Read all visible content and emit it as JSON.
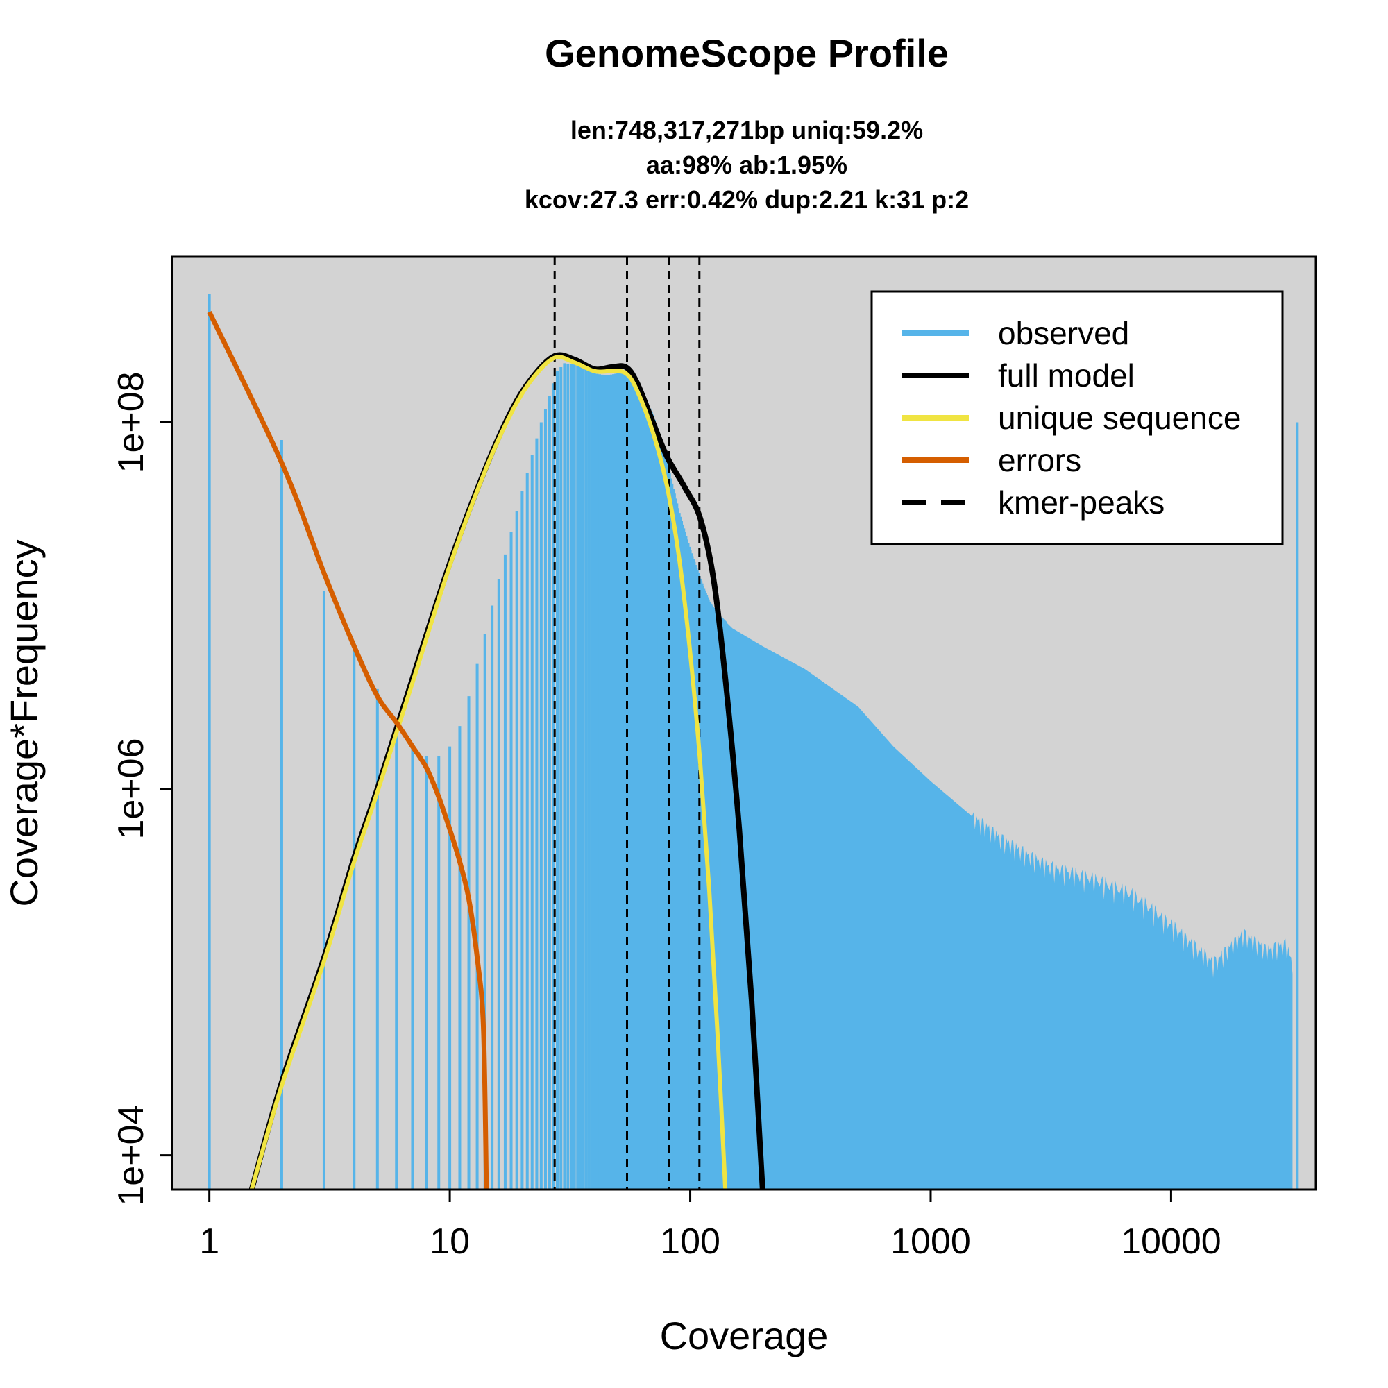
{
  "chart_data": {
    "type": "line",
    "title": "GenomeScope Profile",
    "subtitle_lines": [
      "len:748,317,271bp uniq:59.2%",
      "aa:98% ab:1.95%",
      "kcov:27.3 err:0.42%  dup:2.21  k:31 p:2"
    ],
    "xlabel": "Coverage",
    "ylabel": "Coverage*Frequency",
    "x_scale": "log",
    "y_scale": "log",
    "xlim": [
      0.7,
      40000
    ],
    "ylim": [
      6500,
      800000000
    ],
    "x_ticks": [
      {
        "value": 1,
        "label": "1"
      },
      {
        "value": 10,
        "label": "10"
      },
      {
        "value": 100,
        "label": "100"
      },
      {
        "value": 1000,
        "label": "1000"
      },
      {
        "value": 10000,
        "label": "10000"
      }
    ],
    "y_ticks": [
      {
        "value": 10000,
        "label": "1e+04"
      },
      {
        "value": 1000000,
        "label": "1e+06"
      },
      {
        "value": 100000000,
        "label": "1e+08"
      }
    ],
    "legend_position": "top-right",
    "colors": {
      "panel_background": "#d3d3d3",
      "observed": "#56b4e9",
      "full_model": "#000000",
      "unique_sequence": "#f0e442",
      "errors": "#d55e00",
      "kmer_peaks": "#000000"
    },
    "legend": [
      {
        "key": "observed",
        "label": "observed",
        "style": "solid"
      },
      {
        "key": "full_model",
        "label": "full model",
        "style": "solid"
      },
      {
        "key": "unique_sequence",
        "label": "unique sequence",
        "style": "solid"
      },
      {
        "key": "errors",
        "label": "errors",
        "style": "solid"
      },
      {
        "key": "kmer_peaks",
        "label": "kmer-peaks",
        "style": "dashed"
      }
    ],
    "kmer_peaks": [
      27.3,
      54.6,
      81.9,
      109.2
    ],
    "observed": {
      "description_points": [
        [
          1,
          500000000
        ],
        [
          2,
          80000000
        ],
        [
          3,
          12000000
        ],
        [
          4,
          6000000
        ],
        [
          5,
          3500000
        ],
        [
          6,
          2200000
        ],
        [
          7,
          1700000
        ],
        [
          8,
          1500000
        ],
        [
          9,
          1500000
        ],
        [
          10,
          1700000
        ],
        [
          11,
          2200000
        ],
        [
          12,
          3200000
        ],
        [
          13,
          4800000
        ],
        [
          14,
          7000000
        ],
        [
          15,
          10000000
        ],
        [
          17,
          19000000
        ],
        [
          20,
          42000000
        ],
        [
          24,
          100000000
        ],
        [
          28,
          190000000
        ],
        [
          30,
          210000000
        ],
        [
          35,
          205000000
        ],
        [
          40,
          185000000
        ],
        [
          45,
          180000000
        ],
        [
          50,
          185000000
        ],
        [
          55,
          185000000
        ],
        [
          60,
          165000000
        ],
        [
          70,
          110000000
        ],
        [
          80,
          60000000
        ],
        [
          90,
          32000000
        ],
        [
          100,
          20000000
        ],
        [
          110,
          14000000
        ],
        [
          120,
          10500000
        ],
        [
          130,
          9000000
        ],
        [
          150,
          7500000
        ],
        [
          200,
          6000000
        ],
        [
          300,
          4500000
        ],
        [
          500,
          2800000
        ],
        [
          700,
          1700000
        ],
        [
          1000,
          1100000
        ],
        [
          1500,
          700000
        ],
        [
          2000,
          520000
        ],
        [
          3000,
          380000
        ],
        [
          5000,
          310000
        ],
        [
          7000,
          260000
        ],
        [
          10000,
          180000
        ],
        [
          15000,
          110000
        ],
        [
          20000,
          160000
        ],
        [
          25000,
          130000
        ],
        [
          30000,
          140000
        ],
        [
          32000,
          110000
        ],
        [
          33500,
          100000000
        ]
      ]
    },
    "full_model": [
      [
        1.5,
        6500
      ],
      [
        2,
        25000
      ],
      [
        3,
        120000
      ],
      [
        4,
        420000
      ],
      [
        5,
        1000000
      ],
      [
        7,
        4000000
      ],
      [
        10,
        17000000
      ],
      [
        14,
        55000000
      ],
      [
        18,
        115000000
      ],
      [
        22,
        175000000
      ],
      [
        27.3,
        230000000
      ],
      [
        33,
        220000000
      ],
      [
        40,
        195000000
      ],
      [
        47,
        200000000
      ],
      [
        54,
        200000000
      ],
      [
        60,
        165000000
      ],
      [
        70,
        100000000
      ],
      [
        80,
        65000000
      ],
      [
        95,
        44000000
      ],
      [
        110,
        30000000
      ],
      [
        125,
        14000000
      ],
      [
        140,
        4000000
      ],
      [
        160,
        600000
      ],
      [
        180,
        70000
      ],
      [
        200,
        6500
      ]
    ],
    "unique_sequence": [
      [
        1.5,
        6500
      ],
      [
        2,
        24000
      ],
      [
        3,
        115000
      ],
      [
        4,
        400000
      ],
      [
        5,
        960000
      ],
      [
        7,
        3800000
      ],
      [
        10,
        16500000
      ],
      [
        14,
        54000000
      ],
      [
        18,
        112000000
      ],
      [
        22,
        172000000
      ],
      [
        27.3,
        225000000
      ],
      [
        33,
        212000000
      ],
      [
        40,
        190000000
      ],
      [
        47,
        190000000
      ],
      [
        54,
        185000000
      ],
      [
        60,
        150000000
      ],
      [
        70,
        88000000
      ],
      [
        80,
        45000000
      ],
      [
        90,
        18000000
      ],
      [
        100,
        5500000
      ],
      [
        110,
        1400000
      ],
      [
        120,
        280000
      ],
      [
        130,
        45000
      ],
      [
        140,
        6500
      ]
    ],
    "errors": [
      [
        1,
        400000000
      ],
      [
        2,
        60000000
      ],
      [
        3,
        15000000
      ],
      [
        4,
        6000000
      ],
      [
        5,
        3200000
      ],
      [
        6,
        2300000
      ],
      [
        7,
        1700000
      ],
      [
        8,
        1300000
      ],
      [
        9,
        900000
      ],
      [
        10,
        600000
      ],
      [
        11,
        400000
      ],
      [
        12,
        250000
      ],
      [
        13,
        120000
      ],
      [
        13.8,
        50000
      ],
      [
        14.2,
        6500
      ]
    ]
  }
}
